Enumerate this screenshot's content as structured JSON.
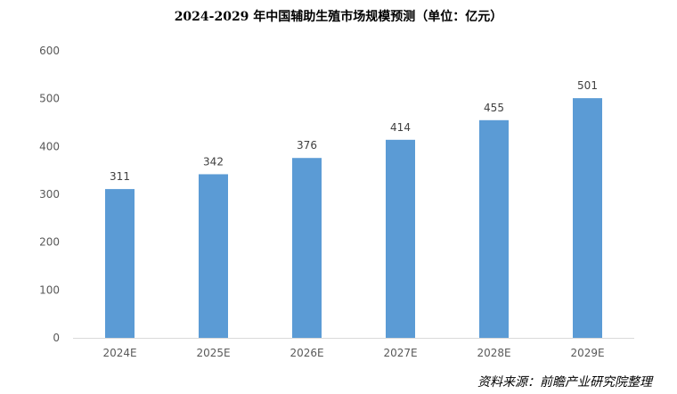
{
  "chart_data": {
    "type": "bar",
    "title": "2024-2029 年中国辅助生殖市场规模预测（单位：亿元）",
    "categories": [
      "2024E",
      "2025E",
      "2026E",
      "2027E",
      "2028E",
      "2029E"
    ],
    "series": [
      {
        "values": [
          311,
          342,
          376,
          414,
          455,
          501
        ],
        "color": "#5b9bd5"
      }
    ],
    "data_labels": [
      "311",
      "342",
      "376",
      "414",
      "455",
      "501"
    ],
    "y_ticks": [
      "0",
      "100",
      "200",
      "300",
      "400",
      "500",
      "600"
    ],
    "ylim": [
      0,
      600
    ],
    "grid": false,
    "legend": "none"
  },
  "source_note": "资料来源：前瞻产业研究院整理"
}
